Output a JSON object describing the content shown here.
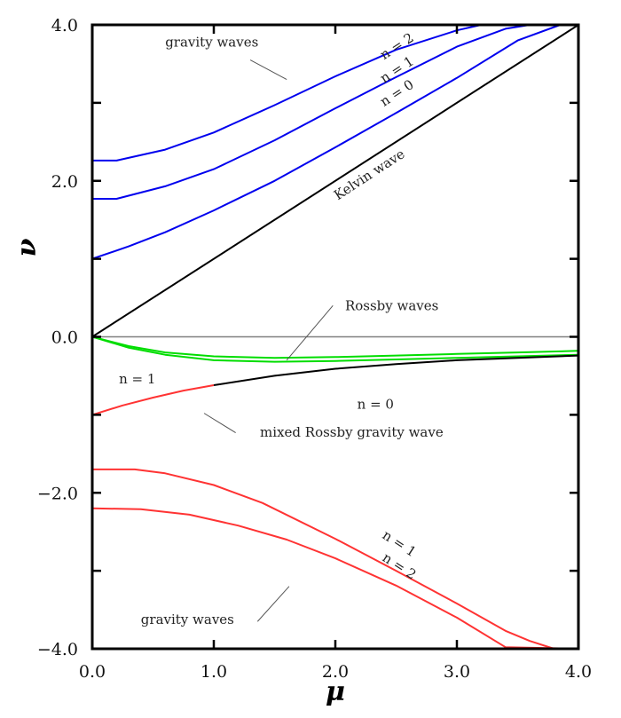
{
  "chart_data": {
    "type": "line",
    "title": "",
    "xlabel": "μ",
    "ylabel": "ν",
    "xlim": [
      0,
      4
    ],
    "ylim": [
      -4,
      4
    ],
    "grid": false,
    "x_ticks": [
      {
        "value": 0,
        "label": "0.0"
      },
      {
        "value": 1,
        "label": "1.0"
      },
      {
        "value": 2,
        "label": "2.0"
      },
      {
        "value": 3,
        "label": "3.0"
      },
      {
        "value": 4,
        "label": "4.0"
      }
    ],
    "y_ticks": [
      {
        "value": 4,
        "label": "4.0"
      },
      {
        "value": 2,
        "label": "2.0"
      },
      {
        "value": 0,
        "label": "0.0"
      },
      {
        "value": -2,
        "label": "-2.0"
      },
      {
        "value": -4,
        "label": "-4.0"
      }
    ],
    "x_minor_ticks": [
      0.5,
      1.5,
      2.5,
      3.5
    ],
    "y_minor_ticks": [
      3,
      1,
      -1,
      -3
    ],
    "zero_line": {
      "value": 0,
      "color": "#808080"
    },
    "series": [
      {
        "name": "gravity wave n=2 (eastward)",
        "color": "#0000ee",
        "x": [
          0,
          0.2,
          0.6,
          1.0,
          1.5,
          2.0,
          2.5,
          3.0,
          3.2,
          4.0
        ],
        "y": [
          2.26,
          2.26,
          2.4,
          2.62,
          2.97,
          3.34,
          3.68,
          3.93,
          4.0,
          4.0
        ]
      },
      {
        "name": "gravity wave n=1 (eastward)",
        "color": "#0000ee",
        "x": [
          0,
          0.2,
          0.6,
          1.0,
          1.5,
          2.0,
          2.5,
          3.0,
          3.4,
          3.6,
          4.0
        ],
        "y": [
          1.77,
          1.77,
          1.93,
          2.15,
          2.52,
          2.93,
          3.33,
          3.72,
          3.95,
          4.0,
          4.0
        ]
      },
      {
        "name": "gravity wave n=0 (eastward)",
        "color": "#0000ee",
        "x": [
          0,
          0.3,
          0.6,
          1.0,
          1.5,
          2.0,
          2.5,
          3.0,
          3.5,
          3.85,
          4.0
        ],
        "y": [
          1.0,
          1.16,
          1.34,
          1.62,
          2.0,
          2.43,
          2.87,
          3.32,
          3.8,
          4.0,
          4.0
        ]
      },
      {
        "name": "Kelvin wave",
        "color": "#000000",
        "x": [
          0,
          4
        ],
        "y": [
          0,
          4
        ]
      },
      {
        "name": "Rossby wave n=1",
        "color": "#00dd00",
        "x": [
          0,
          0.3,
          0.6,
          1.0,
          1.5,
          2.0,
          2.5,
          3.0,
          3.5,
          4.0
        ],
        "y": [
          0,
          -0.12,
          -0.2,
          -0.25,
          -0.27,
          -0.26,
          -0.24,
          -0.22,
          -0.2,
          -0.18
        ]
      },
      {
        "name": "Rossby wave n=2",
        "color": "#00dd00",
        "x": [
          0,
          0.3,
          0.6,
          1.0,
          1.5,
          2.0,
          2.5,
          3.0,
          3.5,
          4.0
        ],
        "y": [
          0,
          -0.14,
          -0.23,
          -0.3,
          -0.32,
          -0.31,
          -0.29,
          -0.27,
          -0.25,
          -0.23
        ]
      },
      {
        "name": "mixed Rossby gravity wave n=0 (eastward part)",
        "color": "#ff3333",
        "x": [
          0,
          0.25,
          0.5,
          0.75,
          1.0
        ],
        "y": [
          -1.0,
          -0.88,
          -0.78,
          -0.69,
          -0.62
        ]
      },
      {
        "name": "mixed Rossby gravity wave n=0 (westward part)",
        "color": "#000000",
        "x": [
          1.0,
          1.5,
          2.0,
          2.5,
          3.0,
          3.5,
          4.0
        ],
        "y": [
          -0.62,
          -0.5,
          -0.41,
          -0.35,
          -0.3,
          -0.27,
          -0.24
        ]
      },
      {
        "name": "gravity wave n=1 (westward)",
        "color": "#ff3333",
        "x": [
          0,
          0.35,
          0.6,
          1.0,
          1.4,
          2.0,
          2.5,
          3.0,
          3.4,
          3.6,
          3.8,
          4.0
        ],
        "y": [
          -1.7,
          -1.7,
          -1.75,
          -1.9,
          -2.13,
          -2.59,
          -3.0,
          -3.42,
          -3.77,
          -3.9,
          -4.0,
          -4.0
        ]
      },
      {
        "name": "gravity wave n=2 (westward)",
        "color": "#ff3333",
        "x": [
          0,
          0.4,
          0.8,
          1.2,
          1.6,
          2.0,
          2.5,
          3.0,
          3.4,
          4.0
        ],
        "y": [
          -2.2,
          -2.21,
          -2.28,
          -2.42,
          -2.6,
          -2.84,
          -3.19,
          -3.6,
          -3.98,
          -4.0
        ]
      }
    ],
    "annotations": [
      {
        "text": "gravity waves",
        "x": 0.6,
        "y": 3.72,
        "rotate": 0,
        "leader": [
          [
            1.3,
            3.55
          ],
          [
            1.6,
            3.3
          ]
        ]
      },
      {
        "text": "n = 2",
        "x": 2.4,
        "y": 3.55,
        "rotate": -33
      },
      {
        "text": "n = 1",
        "x": 2.4,
        "y": 3.25,
        "rotate": -33
      },
      {
        "text": "n = 0",
        "x": 2.4,
        "y": 2.95,
        "rotate": -33
      },
      {
        "text": "Kelvin wave",
        "x": 2.02,
        "y": 1.75,
        "rotate": -33
      },
      {
        "text": "Rossby waves",
        "x": 2.08,
        "y": 0.34,
        "rotate": 0,
        "leader": [
          [
            1.98,
            0.4
          ],
          [
            1.6,
            -0.3
          ]
        ]
      },
      {
        "text": "n = 1",
        "x": 0.22,
        "y": -0.6,
        "rotate": 0
      },
      {
        "text": "n = 0",
        "x": 2.18,
        "y": -0.92,
        "rotate": 0
      },
      {
        "text": "mixed Rossby gravity wave",
        "x": 1.38,
        "y": -1.28,
        "rotate": 0,
        "leader": [
          [
            0.92,
            -0.98
          ],
          [
            1.18,
            -1.23
          ]
        ]
      },
      {
        "text": "n = 1",
        "x": 2.38,
        "y": -2.57,
        "rotate": 33
      },
      {
        "text": "n = 2",
        "x": 2.38,
        "y": -2.86,
        "rotate": 33
      },
      {
        "text": "gravity waves",
        "x": 0.4,
        "y": -3.68,
        "rotate": 0,
        "leader": [
          [
            1.62,
            -3.2
          ],
          [
            1.36,
            -3.65
          ]
        ]
      }
    ]
  }
}
